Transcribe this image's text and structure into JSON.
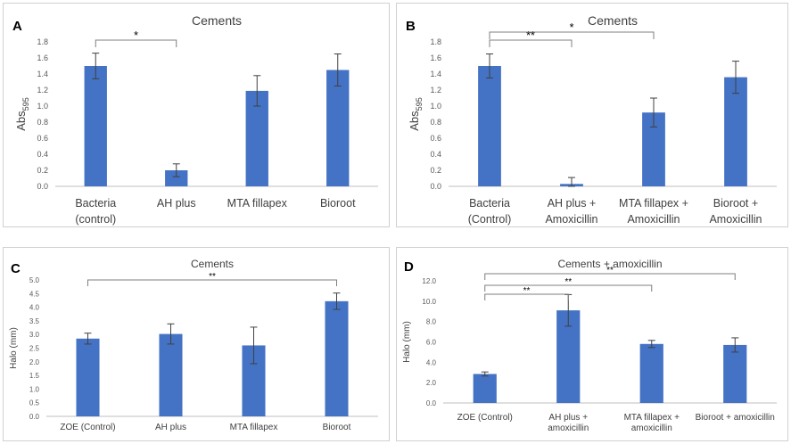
{
  "chart_data": [
    {
      "panel": "A",
      "type": "bar",
      "title": "Cements",
      "ylabel": "Abs",
      "ylabel_subscript": "595",
      "xlabel": "",
      "ylim": [
        0,
        1.8
      ],
      "y_ticks": [
        "0.0",
        "0.2",
        "0.4",
        "0.6",
        "0.8",
        "1.0",
        "1.2",
        "1.4",
        "1.6",
        "1.8"
      ],
      "categories": [
        [
          "Bacteria",
          "(control)"
        ],
        [
          "AH plus"
        ],
        [
          "MTA fillapex"
        ],
        [
          "Bioroot"
        ]
      ],
      "values": [
        1.5,
        0.2,
        1.19,
        1.45
      ],
      "errors": [
        0.16,
        0.08,
        0.19,
        0.2
      ],
      "significance": [
        {
          "from": 0,
          "to": 1,
          "label": "*"
        }
      ],
      "bar_color": "#4472C4"
    },
    {
      "panel": "B",
      "type": "bar",
      "title": "Cements",
      "ylabel": "Abs",
      "ylabel_subscript": "595",
      "xlabel": "",
      "ylim": [
        0,
        1.8
      ],
      "y_ticks": [
        "0.0",
        "0.2",
        "0.4",
        "0.6",
        "0.8",
        "1.0",
        "1.2",
        "1.4",
        "1.6",
        "1.8"
      ],
      "categories": [
        [
          "Bacteria",
          "(Control)"
        ],
        [
          "AH plus +",
          "Amoxicillin"
        ],
        [
          "MTA fillapex +",
          "Amoxicillin"
        ],
        [
          "Bioroot +",
          "Amoxicillin"
        ]
      ],
      "values": [
        1.5,
        0.03,
        0.92,
        1.36
      ],
      "errors": [
        0.15,
        0.08,
        0.18,
        0.2
      ],
      "significance": [
        {
          "from": 0,
          "to": 1,
          "label": "**"
        },
        {
          "from": 0,
          "to": 2,
          "label": "*"
        }
      ],
      "bar_color": "#4472C4"
    },
    {
      "panel": "C",
      "type": "bar",
      "title": "Cements",
      "ylabel": "Halo (mm)",
      "xlabel": "",
      "ylim": [
        0,
        5.0
      ],
      "y_ticks": [
        "0.0",
        "0.5",
        "1.0",
        "1.5",
        "2.0",
        "2.5",
        "3.0",
        "3.5",
        "4.0",
        "4.5",
        "5.0"
      ],
      "categories": [
        [
          "ZOE (Control)"
        ],
        [
          "AH plus"
        ],
        [
          "MTA fillapex"
        ],
        [
          "Bioroot"
        ]
      ],
      "values": [
        2.85,
        3.02,
        2.6,
        4.22
      ],
      "errors": [
        0.2,
        0.37,
        0.67,
        0.3
      ],
      "significance": [
        {
          "from": 0,
          "to": 3,
          "label": "**"
        }
      ],
      "bar_color": "#4472C4"
    },
    {
      "panel": "D",
      "type": "bar",
      "title": "Cements + amoxicillin",
      "ylabel": "Halo (mm)",
      "xlabel": "",
      "ylim": [
        0,
        12.0
      ],
      "y_ticks": [
        "0.0",
        "2.0",
        "4.0",
        "6.0",
        "8.0",
        "10.0",
        "12.0"
      ],
      "categories": [
        [
          "ZOE (Control)"
        ],
        [
          "AH plus +",
          "amoxicillin"
        ],
        [
          "MTA fillapex +",
          "amoxicillin"
        ],
        [
          "Bioroot + amoxicillin"
        ]
      ],
      "values": [
        2.85,
        9.1,
        5.8,
        5.7
      ],
      "errors": [
        0.2,
        1.55,
        0.35,
        0.7
      ],
      "significance": [
        {
          "from": 0,
          "to": 1,
          "label": "**"
        },
        {
          "from": 0,
          "to": 2,
          "label": "**"
        },
        {
          "from": 0,
          "to": 3,
          "label": "**"
        }
      ],
      "bar_color": "#4472C4"
    }
  ]
}
